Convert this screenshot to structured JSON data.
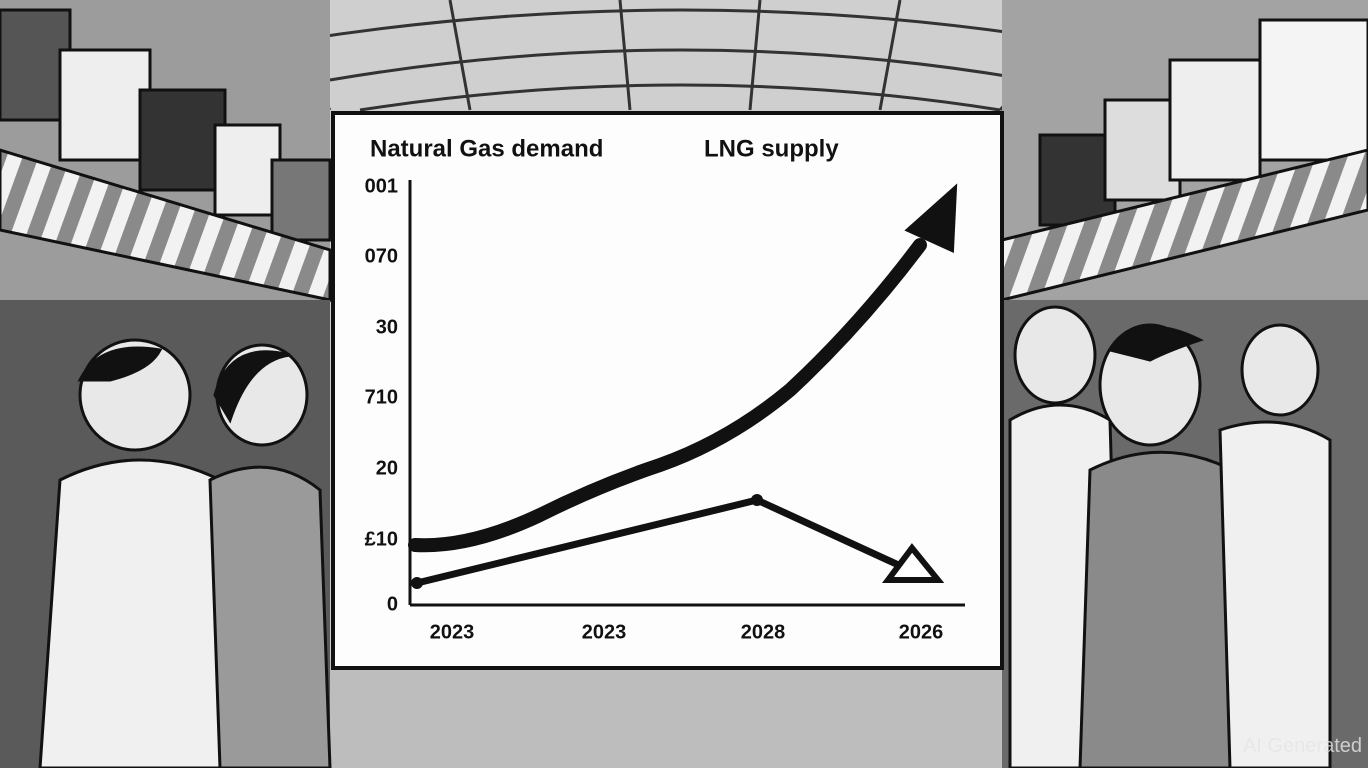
{
  "board": {
    "legend_labels": [
      "Natural Gas demand",
      "LNG supply"
    ],
    "y_axis_labels": [
      "001",
      "070",
      "30",
      "710",
      "20",
      "£10",
      "0"
    ],
    "x_axis_labels": [
      "2023",
      "2023",
      "2028",
      "2026"
    ]
  },
  "watermark": "AI Generated"
}
